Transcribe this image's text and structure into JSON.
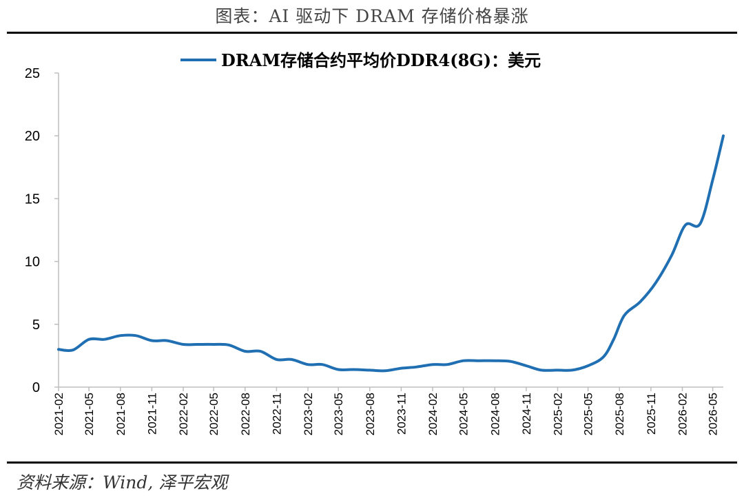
{
  "page": {
    "title": "图表：AI 驱动下 DRAM 存储价格暴涨",
    "source": "资料来源：Wind, 泽平宏观"
  },
  "chart_data": {
    "type": "line",
    "title": "",
    "xlabel": "",
    "ylabel": "",
    "ylim": [
      0,
      25
    ],
    "yticks": [
      "0",
      "5",
      "10",
      "15",
      "20",
      "25"
    ],
    "xticks": [
      "2021-02",
      "2021-05",
      "2021-08",
      "2021-11",
      "2022-02",
      "2022-05",
      "2022-08",
      "2022-11",
      "2023-02",
      "2023-05",
      "2023-08",
      "2023-11",
      "2024-02",
      "2024-05",
      "2024-08",
      "2024-11",
      "2025-02",
      "2025-05",
      "2025-08",
      "2025-11",
      "2026-02",
      "2026-05"
    ],
    "grid": false,
    "legend": "top-center",
    "series": [
      {
        "name": "DRAM存储合约平均价DDR4(8G)：美元",
        "color": "#1f6fb2",
        "points": [
          [
            "2021-02-01",
            3.0
          ],
          [
            "2021-03-15",
            2.95
          ],
          [
            "2021-05-01",
            3.8
          ],
          [
            "2021-06-15",
            3.8
          ],
          [
            "2021-08-01",
            4.1
          ],
          [
            "2021-09-15",
            4.1
          ],
          [
            "2021-11-01",
            3.7
          ],
          [
            "2021-12-15",
            3.7
          ],
          [
            "2022-02-01",
            3.4
          ],
          [
            "2022-03-15",
            3.4
          ],
          [
            "2022-05-01",
            3.4
          ],
          [
            "2022-06-15",
            3.35
          ],
          [
            "2022-08-01",
            2.85
          ],
          [
            "2022-09-15",
            2.85
          ],
          [
            "2022-11-01",
            2.2
          ],
          [
            "2022-12-15",
            2.2
          ],
          [
            "2023-02-01",
            1.8
          ],
          [
            "2023-03-15",
            1.8
          ],
          [
            "2023-05-01",
            1.4
          ],
          [
            "2023-06-15",
            1.4
          ],
          [
            "2023-08-01",
            1.35
          ],
          [
            "2023-09-15",
            1.3
          ],
          [
            "2023-11-01",
            1.5
          ],
          [
            "2023-12-15",
            1.6
          ],
          [
            "2024-02-01",
            1.8
          ],
          [
            "2024-03-15",
            1.8
          ],
          [
            "2024-05-01",
            2.1
          ],
          [
            "2024-06-15",
            2.1
          ],
          [
            "2024-08-01",
            2.1
          ],
          [
            "2024-09-15",
            2.05
          ],
          [
            "2024-11-01",
            1.7
          ],
          [
            "2024-12-15",
            1.35
          ],
          [
            "2025-02-01",
            1.35
          ],
          [
            "2025-03-15",
            1.35
          ],
          [
            "2025-05-01",
            1.7
          ],
          [
            "2025-06-15",
            2.4
          ],
          [
            "2025-07-15",
            3.8
          ],
          [
            "2025-08-15",
            5.7
          ],
          [
            "2025-10-01",
            6.8
          ],
          [
            "2025-11-15",
            8.3
          ],
          [
            "2026-01-01",
            10.5
          ],
          [
            "2026-02-10",
            12.9
          ],
          [
            "2026-03-25",
            13.0
          ],
          [
            "2026-05-01",
            16.5
          ],
          [
            "2026-06-01",
            20.0
          ]
        ]
      }
    ]
  }
}
